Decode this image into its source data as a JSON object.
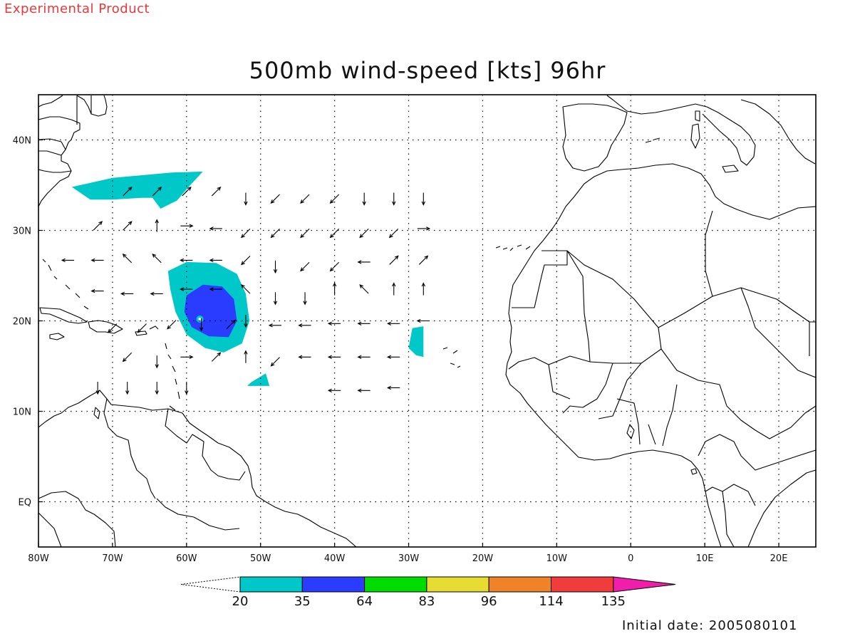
{
  "header": {
    "experimental_label": "Experimental Product"
  },
  "title": "500mb wind-speed [kts] 96hr",
  "footer": {
    "initial_date": "Initial date: 2005080101"
  },
  "map": {
    "lon_range": [
      -80,
      25
    ],
    "lat_range": [
      -5,
      45
    ],
    "x_ticks": [
      {
        "lon": -80,
        "label": "80W"
      },
      {
        "lon": -70,
        "label": "70W"
      },
      {
        "lon": -60,
        "label": "60W"
      },
      {
        "lon": -50,
        "label": "50W"
      },
      {
        "lon": -40,
        "label": "40W"
      },
      {
        "lon": -30,
        "label": "30W"
      },
      {
        "lon": -20,
        "label": "20W"
      },
      {
        "lon": -10,
        "label": "10W"
      },
      {
        "lon": 0,
        "label": "0"
      },
      {
        "lon": 10,
        "label": "10E"
      },
      {
        "lon": 20,
        "label": "20E"
      }
    ],
    "y_ticks": [
      {
        "lat": 40,
        "label": "40N"
      },
      {
        "lat": 30,
        "label": "30N"
      },
      {
        "lat": 20,
        "label": "20N"
      },
      {
        "lat": 10,
        "label": "10N"
      },
      {
        "lat": 0,
        "label": "EQ"
      }
    ],
    "grid": true,
    "coast_color": "#000000"
  },
  "colorbar": {
    "colors": [
      "#00c8c8",
      "#2a3cff",
      "#00dc00",
      "#e6dc32",
      "#f08228",
      "#f03c3c",
      "#f01eaa"
    ],
    "labels": [
      "20",
      "35",
      "64",
      "83",
      "96",
      "114",
      "135"
    ]
  },
  "shading": [
    {
      "level": "20-35",
      "color": "#00c8c8",
      "region": "storm outer shield",
      "lonlat": [
        [
          -62.5,
          25.5
        ],
        [
          -60,
          26.5
        ],
        [
          -56,
          26.4
        ],
        [
          -53.2,
          25.2
        ],
        [
          -52,
          23
        ],
        [
          -51.5,
          20
        ],
        [
          -52.5,
          17.5
        ],
        [
          -55,
          16.5
        ],
        [
          -57.5,
          17
        ],
        [
          -60,
          18.5
        ],
        [
          -61.5,
          21
        ],
        [
          -62.2,
          23.5
        ]
      ]
    },
    {
      "level": "35-64",
      "color": "#2a3cff",
      "region": "storm core",
      "lonlat": [
        [
          -60,
          22.8
        ],
        [
          -57.8,
          24
        ],
        [
          -55.2,
          23.8
        ],
        [
          -53.6,
          22.4
        ],
        [
          -53.2,
          20
        ],
        [
          -54.3,
          18.2
        ],
        [
          -57,
          18.3
        ],
        [
          -59.3,
          19.3
        ],
        [
          -60.3,
          21
        ]
      ]
    },
    {
      "level": "20-35",
      "color": "#00c8c8",
      "region": "northern jet band",
      "lonlat": [
        [
          -75.5,
          34.8
        ],
        [
          -70,
          35.8
        ],
        [
          -62,
          36.4
        ],
        [
          -57.8,
          36.5
        ],
        [
          -59.5,
          35
        ],
        [
          -61.3,
          33.3
        ],
        [
          -63.5,
          32.4
        ],
        [
          -64.6,
          33.6
        ],
        [
          -66,
          33.6
        ],
        [
          -70,
          33.4
        ],
        [
          -73,
          33.4
        ]
      ]
    },
    {
      "level": "20-35",
      "color": "#00c8c8",
      "region": "eastern blob",
      "lonlat": [
        [
          -29.5,
          19.2
        ],
        [
          -28,
          19.4
        ],
        [
          -28,
          16
        ],
        [
          -29,
          16.2
        ],
        [
          -30,
          17
        ]
      ]
    },
    {
      "level": "20-35",
      "color": "#00c8c8",
      "region": "southern blob",
      "lonlat": [
        [
          -51.3,
          13.2
        ],
        [
          -49.3,
          14.2
        ],
        [
          -48.8,
          12.8
        ],
        [
          -51.8,
          12.8
        ]
      ]
    }
  ],
  "wind_vectors": [
    {
      "lon": -68,
      "lat": 34.3,
      "dir": "NE"
    },
    {
      "lon": -64,
      "lat": 34.3,
      "dir": "NE"
    },
    {
      "lon": -60,
      "lat": 34.3,
      "dir": "NE"
    },
    {
      "lon": -56,
      "lat": 34.3,
      "dir": "NE"
    },
    {
      "lon": -52,
      "lat": 33.5,
      "dir": "S"
    },
    {
      "lon": -48,
      "lat": 33.5,
      "dir": "SW"
    },
    {
      "lon": -44,
      "lat": 33.5,
      "dir": "SW"
    },
    {
      "lon": -40,
      "lat": 33.5,
      "dir": "SW"
    },
    {
      "lon": -36,
      "lat": 33.5,
      "dir": "S"
    },
    {
      "lon": -32,
      "lat": 33.5,
      "dir": "S"
    },
    {
      "lon": -28,
      "lat": 33.5,
      "dir": "S"
    },
    {
      "lon": -72,
      "lat": 30.5,
      "dir": "NE"
    },
    {
      "lon": -68,
      "lat": 30.5,
      "dir": "NE"
    },
    {
      "lon": -64,
      "lat": 30.5,
      "dir": "N"
    },
    {
      "lon": -60,
      "lat": 30.5,
      "dir": "E"
    },
    {
      "lon": -56,
      "lat": 30.2,
      "dir": "W"
    },
    {
      "lon": -52,
      "lat": 29.7,
      "dir": "SW"
    },
    {
      "lon": -48,
      "lat": 29.7,
      "dir": "SW"
    },
    {
      "lon": -44,
      "lat": 29.7,
      "dir": "SW"
    },
    {
      "lon": -40,
      "lat": 29.7,
      "dir": "SW"
    },
    {
      "lon": -36,
      "lat": 29.7,
      "dir": "SW"
    },
    {
      "lon": -32,
      "lat": 29.7,
      "dir": "SW"
    },
    {
      "lon": -28,
      "lat": 30.2,
      "dir": "E"
    },
    {
      "lon": -76,
      "lat": 26.7,
      "dir": "W"
    },
    {
      "lon": -72,
      "lat": 26.7,
      "dir": "W"
    },
    {
      "lon": -68,
      "lat": 26.9,
      "dir": "NW"
    },
    {
      "lon": -64,
      "lat": 26.9,
      "dir": "NW"
    },
    {
      "lon": -60,
      "lat": 26.7,
      "dir": "W"
    },
    {
      "lon": -56,
      "lat": 26.7,
      "dir": "W"
    },
    {
      "lon": -52,
      "lat": 26.7,
      "dir": "SW"
    },
    {
      "lon": -48,
      "lat": 26,
      "dir": "S"
    },
    {
      "lon": -44,
      "lat": 26,
      "dir": "SW"
    },
    {
      "lon": -40,
      "lat": 26,
      "dir": "SW"
    },
    {
      "lon": -36,
      "lat": 26.5,
      "dir": "W"
    },
    {
      "lon": -32,
      "lat": 26.7,
      "dir": "NE"
    },
    {
      "lon": -28,
      "lat": 26.7,
      "dir": "NE"
    },
    {
      "lon": -72,
      "lat": 23.3,
      "dir": "W"
    },
    {
      "lon": -68,
      "lat": 23,
      "dir": "W"
    },
    {
      "lon": -64,
      "lat": 23,
      "dir": "W"
    },
    {
      "lon": -60,
      "lat": 23.5,
      "dir": "W"
    },
    {
      "lon": -56,
      "lat": 23.5,
      "dir": "W"
    },
    {
      "lon": -52,
      "lat": 23.5,
      "dir": "NW"
    },
    {
      "lon": -48,
      "lat": 22.5,
      "dir": "S"
    },
    {
      "lon": -44,
      "lat": 22.5,
      "dir": "S"
    },
    {
      "lon": -40,
      "lat": 23.5,
      "dir": "N"
    },
    {
      "lon": -36,
      "lat": 23.5,
      "dir": "NW"
    },
    {
      "lon": -32,
      "lat": 23.5,
      "dir": "N"
    },
    {
      "lon": -28,
      "lat": 23.5,
      "dir": "N"
    },
    {
      "lon": -70,
      "lat": 19.2,
      "dir": "SW"
    },
    {
      "lon": -66,
      "lat": 19.2,
      "dir": "SW"
    },
    {
      "lon": -62,
      "lat": 19.6,
      "dir": "SW"
    },
    {
      "lon": -58,
      "lat": 19.6,
      "dir": "S"
    },
    {
      "lon": -54,
      "lat": 19.6,
      "dir": "NE"
    },
    {
      "lon": -52,
      "lat": 20,
      "dir": "S"
    },
    {
      "lon": -48,
      "lat": 19.5,
      "dir": "W"
    },
    {
      "lon": -44,
      "lat": 19.5,
      "dir": "W"
    },
    {
      "lon": -40,
      "lat": 19.7,
      "dir": "W"
    },
    {
      "lon": -36,
      "lat": 19.7,
      "dir": "W"
    },
    {
      "lon": -32,
      "lat": 19.7,
      "dir": "W"
    },
    {
      "lon": -28,
      "lat": 20,
      "dir": "W"
    },
    {
      "lon": -68,
      "lat": 16,
      "dir": "SW"
    },
    {
      "lon": -64,
      "lat": 15.5,
      "dir": "S"
    },
    {
      "lon": -60,
      "lat": 16,
      "dir": "E"
    },
    {
      "lon": -56,
      "lat": 16,
      "dir": "NE"
    },
    {
      "lon": -52,
      "lat": 16,
      "dir": "N"
    },
    {
      "lon": -48,
      "lat": 15.5,
      "dir": "SW"
    },
    {
      "lon": -44,
      "lat": 16,
      "dir": "W"
    },
    {
      "lon": -40,
      "lat": 16,
      "dir": "W"
    },
    {
      "lon": -36,
      "lat": 16,
      "dir": "W"
    },
    {
      "lon": -32,
      "lat": 16,
      "dir": "W"
    },
    {
      "lon": -72,
      "lat": 12.6,
      "dir": "S"
    },
    {
      "lon": -68,
      "lat": 12.6,
      "dir": "S"
    },
    {
      "lon": -64,
      "lat": 12.6,
      "dir": "S"
    },
    {
      "lon": -60,
      "lat": 12.6,
      "dir": "S"
    },
    {
      "lon": -40,
      "lat": 12.3,
      "dir": "W"
    },
    {
      "lon": -36,
      "lat": 12.3,
      "dir": "W"
    },
    {
      "lon": -32,
      "lat": 12.6,
      "dir": "W"
    }
  ]
}
